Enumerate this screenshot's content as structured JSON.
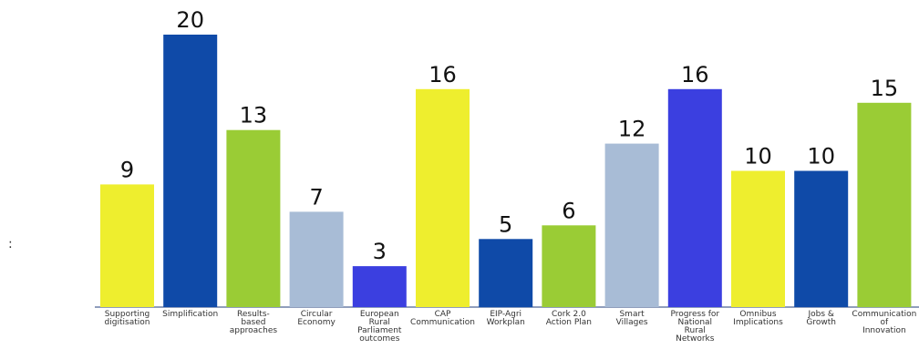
{
  "chart_data": {
    "type": "bar",
    "title": "",
    "xlabel": "",
    "ylabel": "",
    "ylim": [
      0,
      20
    ],
    "grid": false,
    "legend": "none",
    "categories": [
      [
        "Supporting",
        "digitisation"
      ],
      [
        "Simplification"
      ],
      [
        "Results-",
        "based",
        "approaches"
      ],
      [
        "Circular",
        "Economy"
      ],
      [
        "European",
        "Rural",
        "Parliament",
        "outcomes"
      ],
      [
        "CAP",
        "Communication"
      ],
      [
        "EIP-Agri",
        "Workplan"
      ],
      [
        "Cork 2.0",
        "Action Plan"
      ],
      [
        "Smart",
        "Villages"
      ],
      [
        "Progress for",
        "National",
        "Rural",
        "Networks"
      ],
      [
        "Omnibus",
        "Implications"
      ],
      [
        "Jobs &",
        "Growth"
      ],
      [
        "Communication",
        "of",
        "Innovation"
      ]
    ],
    "values": [
      9,
      20,
      13,
      7,
      3,
      16,
      5,
      6,
      12,
      16,
      10,
      10,
      15
    ],
    "colors": [
      "#eeee2e",
      "#0f4aa8",
      "#9acc35",
      "#a8bcd6",
      "#3b3fe0",
      "#eeee2e",
      "#0f4aa8",
      "#9acc35",
      "#a8bcd6",
      "#3b3fe0",
      "#eeee2e",
      "#0f4aa8",
      "#9acc35"
    ]
  },
  "stray_glyph": ":"
}
